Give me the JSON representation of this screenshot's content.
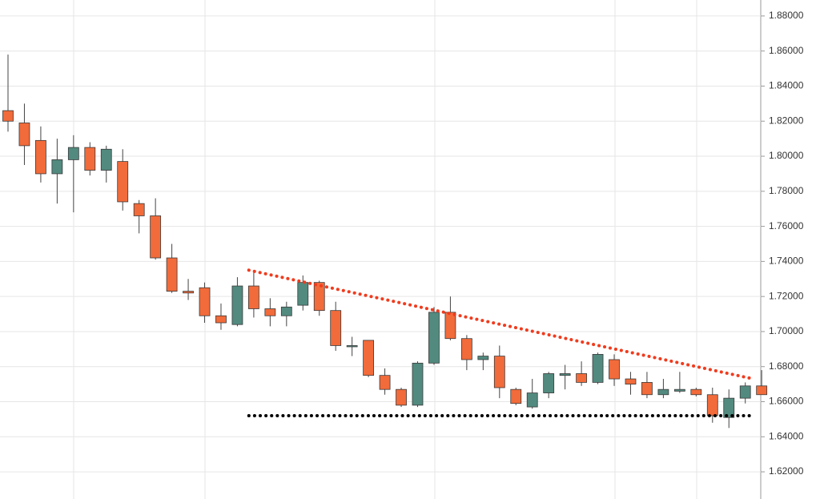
{
  "chart_data": {
    "type": "candlestick",
    "open": [
      1.826,
      1.819,
      1.809,
      1.79,
      1.798,
      1.805,
      1.792,
      1.797,
      1.773,
      1.766,
      1.742,
      1.723,
      1.725,
      1.709,
      1.704,
      1.726,
      1.713,
      1.709,
      1.715,
      1.728,
      1.712,
      1.692,
      1.695,
      1.675,
      1.667,
      1.658,
      1.682,
      1.711,
      1.696,
      1.684,
      1.686,
      1.667,
      1.657,
      1.665,
      1.675,
      1.676,
      1.671,
      1.684,
      1.673,
      1.671,
      1.664,
      1.666,
      1.667,
      1.664,
      1.651,
      1.662,
      1.669
    ],
    "high": [
      1.858,
      1.83,
      1.817,
      1.81,
      1.812,
      1.808,
      1.806,
      1.804,
      1.775,
      1.776,
      1.75,
      1.73,
      1.728,
      1.716,
      1.731,
      1.734,
      1.719,
      1.717,
      1.732,
      1.729,
      1.717,
      1.697,
      1.695,
      1.679,
      1.668,
      1.683,
      1.714,
      1.72,
      1.698,
      1.688,
      1.692,
      1.668,
      1.673,
      1.677,
      1.681,
      1.683,
      1.688,
      1.687,
      1.677,
      1.677,
      1.673,
      1.677,
      1.668,
      1.668,
      1.667,
      1.671,
      1.678
    ],
    "low": [
      1.814,
      1.795,
      1.785,
      1.773,
      1.768,
      1.789,
      1.785,
      1.769,
      1.756,
      1.741,
      1.722,
      1.718,
      1.705,
      1.701,
      1.703,
      1.708,
      1.703,
      1.703,
      1.712,
      1.709,
      1.689,
      1.686,
      1.674,
      1.664,
      1.657,
      1.657,
      1.681,
      1.695,
      1.678,
      1.678,
      1.662,
      1.658,
      1.656,
      1.662,
      1.667,
      1.669,
      1.67,
      1.669,
      1.664,
      1.662,
      1.662,
      1.665,
      1.663,
      1.648,
      1.645,
      1.659,
      1.664
    ],
    "close": [
      1.82,
      1.806,
      1.79,
      1.798,
      1.805,
      1.792,
      1.804,
      1.774,
      1.766,
      1.742,
      1.723,
      1.722,
      1.709,
      1.705,
      1.726,
      1.713,
      1.709,
      1.714,
      1.728,
      1.712,
      1.692,
      1.692,
      1.675,
      1.667,
      1.658,
      1.682,
      1.711,
      1.696,
      1.684,
      1.686,
      1.668,
      1.659,
      1.665,
      1.676,
      1.676,
      1.671,
      1.687,
      1.673,
      1.67,
      1.664,
      1.667,
      1.667,
      1.664,
      1.652,
      1.662,
      1.669,
      1.664
    ],
    "up_color": "#528a7f",
    "down_color": "#f26b3a",
    "ylim": [
      1.6045,
      1.8891
    ],
    "yticks": [
      {
        "value": 1.62,
        "label": "1.62000"
      },
      {
        "value": 1.64,
        "label": "1.64000"
      },
      {
        "value": 1.66,
        "label": "1.66000"
      },
      {
        "value": 1.68,
        "label": "1.68000"
      },
      {
        "value": 1.7,
        "label": "1.70000"
      },
      {
        "value": 1.72,
        "label": "1.72000"
      },
      {
        "value": 1.74,
        "label": "1.74000"
      },
      {
        "value": 1.76,
        "label": "1.76000"
      },
      {
        "value": 1.78,
        "label": "1.78000"
      },
      {
        "value": 1.8,
        "label": "1.80000"
      },
      {
        "value": 1.82,
        "label": "1.82000"
      },
      {
        "value": 1.84,
        "label": "1.84000"
      },
      {
        "value": 1.86,
        "label": "1.86000"
      },
      {
        "value": 1.88,
        "label": "1.88000"
      }
    ],
    "grid": true,
    "lines": [
      {
        "color": "#f03c1e",
        "x": [
          14.7,
          45.5
        ],
        "y": [
          1.735,
          1.673
        ]
      },
      {
        "color": "#000000",
        "x": [
          14.7,
          45.5
        ],
        "y": [
          1.652,
          1.652
        ]
      }
    ]
  }
}
